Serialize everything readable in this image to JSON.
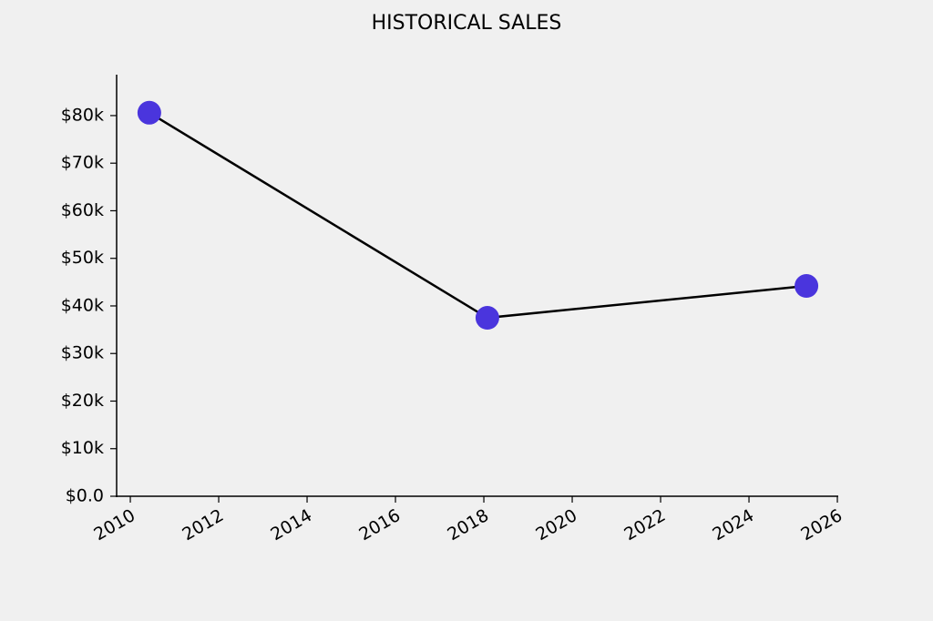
{
  "chart_data": {
    "type": "line",
    "title": "HISTORICAL SALES",
    "x": [
      2010.43,
      2018.08,
      2025.3
    ],
    "series": [
      {
        "name": "Sales",
        "color": "#4a35dd",
        "values": [
          80600,
          37500,
          44200
        ]
      }
    ],
    "xlim": [
      2009.69,
      2026.02
    ],
    "xticks": [
      2010,
      2012,
      2014,
      2016,
      2018,
      2020,
      2022,
      2024,
      2026
    ],
    "ylim": [
      0,
      88600
    ],
    "yticks": [
      {
        "value": 0,
        "label": "$0.0"
      },
      {
        "value": 10000,
        "label": "$10k"
      },
      {
        "value": 20000,
        "label": "$20k"
      },
      {
        "value": 30000,
        "label": "$30k"
      },
      {
        "value": 40000,
        "label": "$40k"
      },
      {
        "value": 50000,
        "label": "$50k"
      },
      {
        "value": 60000,
        "label": "$60k"
      },
      {
        "value": 70000,
        "label": "$70k"
      },
      {
        "value": 80000,
        "label": "$80k"
      }
    ],
    "line_color": "#000000",
    "grid": false
  }
}
